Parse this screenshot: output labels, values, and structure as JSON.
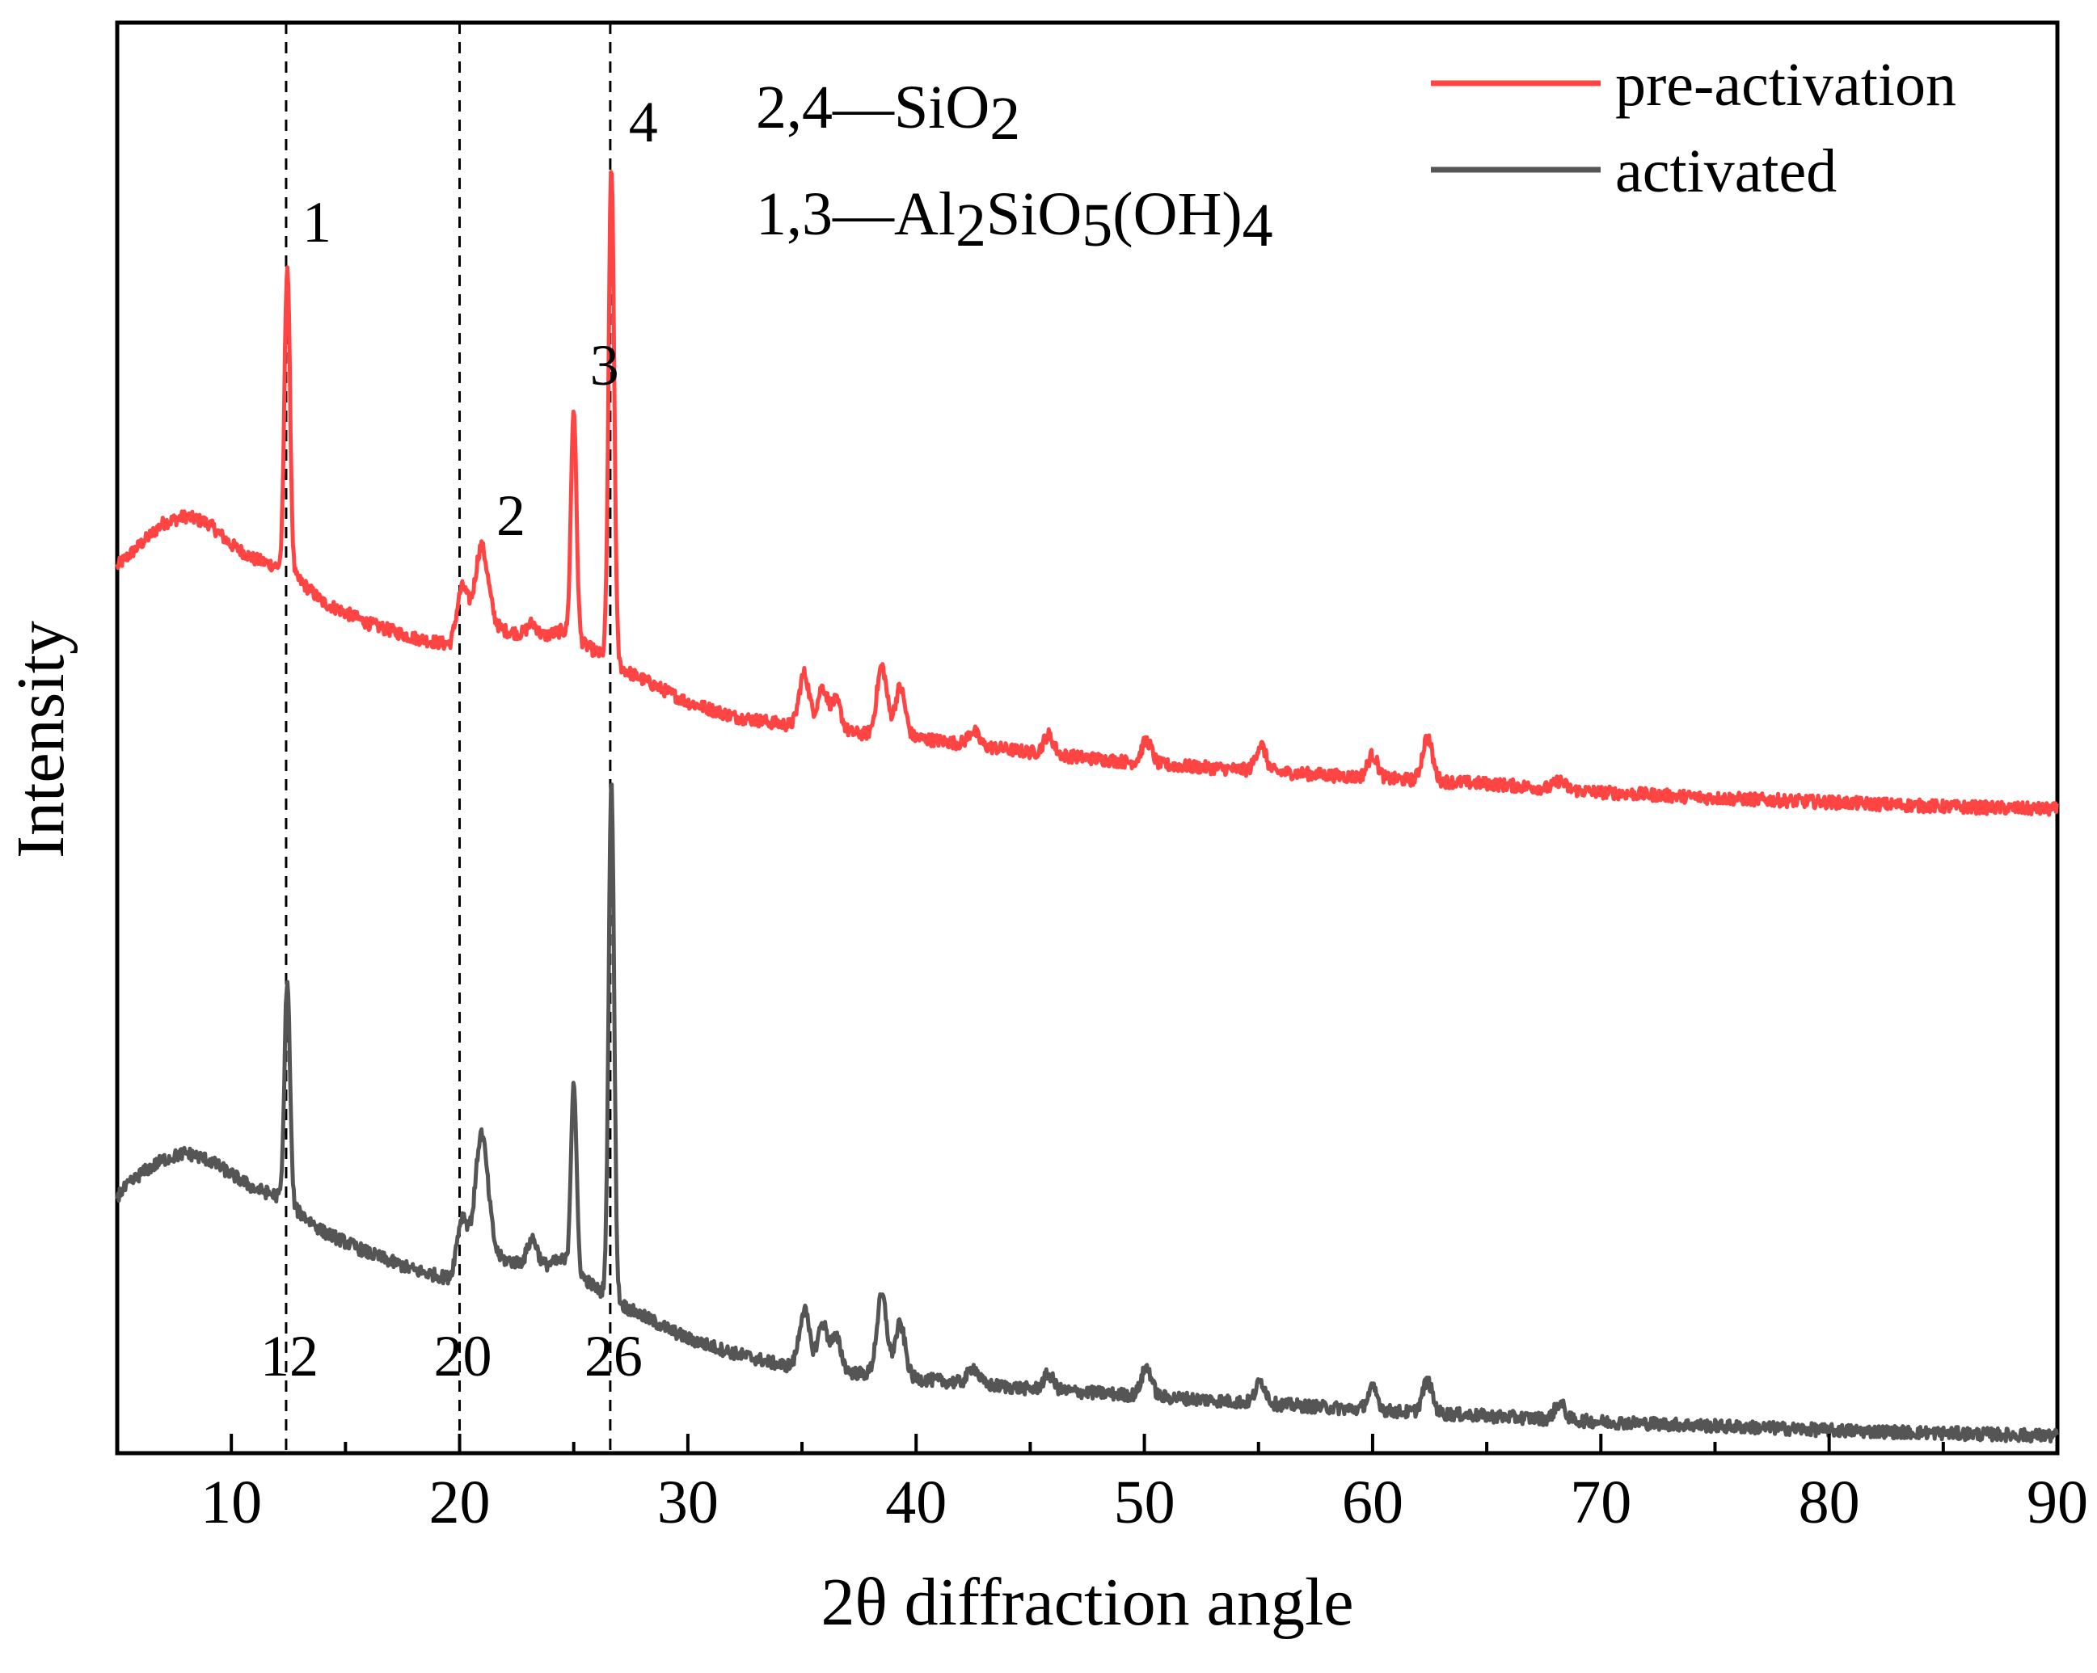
{
  "chart_data": {
    "type": "line",
    "title": "",
    "xlabel": "2θ diffraction angle",
    "ylabel": "Intensity",
    "xlim": [
      5,
      90
    ],
    "xticks": [
      "10",
      "20",
      "30",
      "40",
      "50",
      "60",
      "70",
      "80",
      "90"
    ],
    "yticks_shown": false,
    "legend": {
      "placement": "top-right",
      "entries": [
        {
          "label": "pre-activation",
          "color": "#ff4444"
        },
        {
          "label": "activated",
          "color": "#555555"
        }
      ]
    },
    "phase_annotations": {
      "line1": {
        "prefix": "2,4—SiO",
        "sub": "2"
      },
      "line2": {
        "parts": [
          {
            "t": "1,3—Al",
            "sub": false
          },
          {
            "t": "2",
            "sub": true
          },
          {
            "t": "SiO",
            "sub": false
          },
          {
            "t": "5",
            "sub": true
          },
          {
            "t": "(OH)",
            "sub": false
          },
          {
            "t": "4",
            "sub": true
          }
        ]
      }
    },
    "reference_lines": [
      {
        "x": 12.4,
        "label": "12"
      },
      {
        "x": 20.0,
        "label": "20"
      },
      {
        "x": 26.6,
        "label": "26"
      }
    ],
    "peak_labels": [
      {
        "label": "1",
        "x": 12.4
      },
      {
        "label": "2",
        "x": 20.9
      },
      {
        "label": "3",
        "x": 25.0
      },
      {
        "label": "4",
        "x": 26.7
      }
    ],
    "series": [
      {
        "name": "pre-activation",
        "color": "#ff4444",
        "baseline": [
          [
            5,
            0.62
          ],
          [
            6,
            0.635
          ],
          [
            7,
            0.65
          ],
          [
            8,
            0.655
          ],
          [
            9,
            0.65
          ],
          [
            10,
            0.635
          ],
          [
            11,
            0.625
          ],
          [
            12,
            0.62
          ],
          [
            13,
            0.61
          ],
          [
            14,
            0.595
          ],
          [
            16,
            0.58
          ],
          [
            18,
            0.57
          ],
          [
            19.6,
            0.565
          ],
          [
            20.5,
            0.585
          ],
          [
            22,
            0.575
          ],
          [
            23.5,
            0.57
          ],
          [
            24.5,
            0.575
          ],
          [
            26,
            0.56
          ],
          [
            27.5,
            0.545
          ],
          [
            30,
            0.525
          ],
          [
            32,
            0.515
          ],
          [
            34,
            0.51
          ],
          [
            36,
            0.505
          ],
          [
            40,
            0.5
          ],
          [
            45,
            0.49
          ],
          [
            50,
            0.482
          ],
          [
            55,
            0.477
          ],
          [
            60,
            0.472
          ],
          [
            65,
            0.468
          ],
          [
            70,
            0.462
          ],
          [
            75,
            0.458
          ],
          [
            80,
            0.455
          ],
          [
            85,
            0.452
          ],
          [
            90,
            0.45
          ]
        ],
        "peaks": [
          [
            12.45,
            0.83
          ],
          [
            20.1,
            0.605
          ],
          [
            20.9,
            0.625
          ],
          [
            21.2,
            0.6
          ],
          [
            23.2,
            0.58
          ],
          [
            25.0,
            0.73
          ],
          [
            26.65,
            0.9
          ],
          [
            35.1,
            0.545
          ],
          [
            35.9,
            0.535
          ],
          [
            36.5,
            0.525
          ],
          [
            38.5,
            0.55
          ],
          [
            39.3,
            0.535
          ],
          [
            42.5,
            0.505
          ],
          [
            45.8,
            0.502
          ],
          [
            50.1,
            0.498
          ],
          [
            55.1,
            0.495
          ],
          [
            60.0,
            0.488
          ],
          [
            62.4,
            0.5
          ],
          [
            68.2,
            0.47
          ]
        ]
      },
      {
        "name": "activated",
        "color": "#555555",
        "baseline": [
          [
            5,
            0.18
          ],
          [
            6,
            0.195
          ],
          [
            7,
            0.205
          ],
          [
            8,
            0.21
          ],
          [
            9,
            0.205
          ],
          [
            10,
            0.195
          ],
          [
            11,
            0.185
          ],
          [
            12,
            0.18
          ],
          [
            13,
            0.168
          ],
          [
            14,
            0.155
          ],
          [
            16,
            0.14
          ],
          [
            18,
            0.128
          ],
          [
            19.6,
            0.122
          ],
          [
            20.5,
            0.145
          ],
          [
            22,
            0.135
          ],
          [
            23.5,
            0.13
          ],
          [
            24.5,
            0.135
          ],
          [
            26,
            0.115
          ],
          [
            27.5,
            0.1
          ],
          [
            30,
            0.08
          ],
          [
            32,
            0.07
          ],
          [
            34,
            0.062
          ],
          [
            36,
            0.058
          ],
          [
            40,
            0.052
          ],
          [
            45,
            0.045
          ],
          [
            50,
            0.04
          ],
          [
            55,
            0.035
          ],
          [
            60,
            0.03
          ],
          [
            65,
            0.026
          ],
          [
            70,
            0.022
          ],
          [
            75,
            0.019
          ],
          [
            80,
            0.016
          ],
          [
            85,
            0.014
          ],
          [
            90,
            0.012
          ]
        ],
        "peaks": [
          [
            12.45,
            0.33
          ],
          [
            20.1,
            0.165
          ],
          [
            20.9,
            0.21
          ],
          [
            21.2,
            0.17
          ],
          [
            23.2,
            0.15
          ],
          [
            25.0,
            0.26
          ],
          [
            26.65,
            0.47
          ],
          [
            35.1,
            0.1
          ],
          [
            35.9,
            0.09
          ],
          [
            36.5,
            0.08
          ],
          [
            38.5,
            0.11
          ],
          [
            39.3,
            0.09
          ],
          [
            42.5,
            0.06
          ],
          [
            45.8,
            0.055
          ],
          [
            50.1,
            0.06
          ],
          [
            55.1,
            0.05
          ],
          [
            60.0,
            0.045
          ],
          [
            62.4,
            0.05
          ],
          [
            68.2,
            0.035
          ]
        ]
      }
    ]
  }
}
